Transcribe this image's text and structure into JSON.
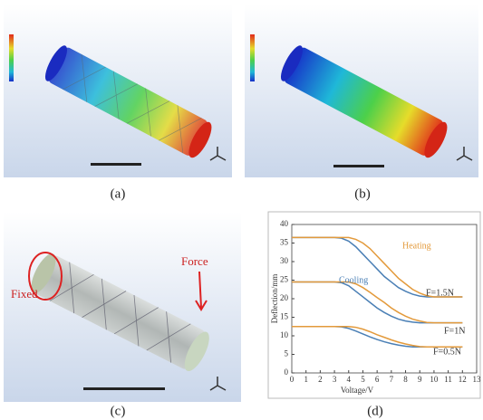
{
  "panels": {
    "a": "(a)",
    "b": "(b)",
    "c": "(c)",
    "d": "(d)"
  },
  "figure_c": {
    "fixed": "Fixed",
    "force": "Force"
  },
  "chart_data": {
    "type": "line",
    "x_label": "Voltage/V",
    "y_label": "Deflection/mm",
    "x": [
      0,
      1,
      2,
      3,
      3.5,
      4,
      4.5,
      5,
      5.5,
      6,
      6.5,
      7,
      7.5,
      8,
      8.5,
      9,
      9.5,
      10,
      11,
      12
    ],
    "series": [
      {
        "color": "#4a7fb5",
        "values": [
          36.5,
          36.5,
          36.5,
          36.5,
          36.3,
          35.5,
          34,
          32,
          30,
          28,
          26,
          24.5,
          23,
          22,
          21.2,
          20.7,
          20.5,
          20.5,
          20.5,
          20.5
        ]
      },
      {
        "color": "#e39a3b",
        "values": [
          36.5,
          36.5,
          36.5,
          36.5,
          36.5,
          36.5,
          36,
          35,
          33.5,
          31.5,
          29.5,
          27.5,
          25.5,
          24,
          22.5,
          21.5,
          20.8,
          20.5,
          20.5,
          20.5
        ]
      },
      {
        "color": "#4a7fb5",
        "values": [
          24.5,
          24.5,
          24.5,
          24.5,
          24.3,
          23.5,
          22,
          20.5,
          19,
          17.5,
          16.3,
          15.3,
          14.5,
          14,
          13.7,
          13.5,
          13.5,
          13.5,
          13.5,
          13.5
        ]
      },
      {
        "color": "#e39a3b",
        "values": [
          24.5,
          24.5,
          24.5,
          24.5,
          24.5,
          24.5,
          24,
          23,
          21.7,
          20.3,
          19,
          17.5,
          16.3,
          15.3,
          14.5,
          14,
          13.6,
          13.5,
          13.5,
          13.5
        ]
      },
      {
        "color": "#4a7fb5",
        "values": [
          12.5,
          12.5,
          12.5,
          12.5,
          12.4,
          12,
          11.3,
          10.5,
          9.7,
          9,
          8.4,
          7.9,
          7.5,
          7.2,
          7,
          7,
          7,
          7,
          7,
          7
        ]
      },
      {
        "color": "#e39a3b",
        "values": [
          12.5,
          12.5,
          12.5,
          12.5,
          12.5,
          12.5,
          12.3,
          11.8,
          11.1,
          10.3,
          9.6,
          8.9,
          8.3,
          7.8,
          7.4,
          7.1,
          7,
          7,
          7,
          7
        ]
      }
    ],
    "annotations": [
      {
        "text": "Cooling",
        "color": "#4a7fb5"
      },
      {
        "text": "Heating",
        "color": "#e39a3b"
      },
      {
        "text": "F=1.5N",
        "color": "#333333"
      },
      {
        "text": "F=1N",
        "color": "#333333"
      },
      {
        "text": "F=0.5N",
        "color": "#333333"
      }
    ],
    "xlim": [
      0,
      13
    ],
    "xticks": [
      0,
      1,
      2,
      3,
      4,
      5,
      6,
      7,
      8,
      9,
      10,
      11,
      12,
      13
    ],
    "ylim": [
      0,
      40
    ],
    "yticks": [
      0,
      5,
      10,
      15,
      20,
      25,
      30,
      35,
      40
    ]
  }
}
